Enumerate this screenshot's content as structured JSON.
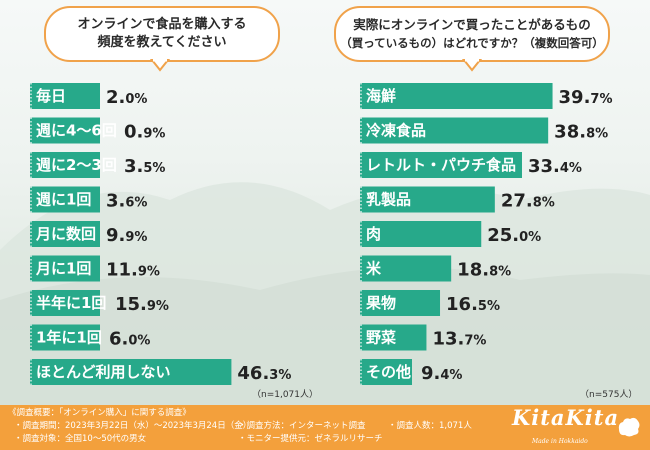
{
  "colors": {
    "bar": "#27a98a",
    "accent": "#f0a24a",
    "footer": "#f3a03c"
  },
  "left_question": [
    "オンラインで食品を購入する",
    "頻度を教えてください"
  ],
  "right_question": [
    "実際にオンラインで買ったことがあるもの",
    "（買っているもの）はどれですか？（複数回答可）"
  ],
  "left_note": "（n=1,071人）",
  "right_note": "（n=575人）",
  "chart_data": [
    {
      "type": "bar",
      "orientation": "horizontal",
      "unit": "%",
      "categories": [
        "毎日",
        "週に4〜6回",
        "週に2〜3回",
        "週に1回",
        "月に数回",
        "月に1回",
        "半年に1回",
        "1年に1回",
        "ほとんど利用しない"
      ],
      "values": [
        2.0,
        0.9,
        3.5,
        3.6,
        9.9,
        11.9,
        15.9,
        6.0,
        46.3
      ],
      "value_text": [
        "2.0",
        "0.9",
        "3.5",
        "3.6",
        "9.9",
        "11.9",
        "15.9",
        "6.0",
        "46.3"
      ]
    },
    {
      "type": "bar",
      "orientation": "horizontal",
      "unit": "%",
      "categories": [
        "海鮮",
        "冷凍食品",
        "レトルト・パウチ食品",
        "乳製品",
        "肉",
        "米",
        "果物",
        "野菜",
        "その他"
      ],
      "values": [
        39.7,
        38.8,
        33.4,
        27.8,
        25.0,
        18.8,
        16.5,
        13.7,
        9.4
      ],
      "value_text": [
        "39.7",
        "38.8",
        "33.4",
        "27.8",
        "25.0",
        "18.8",
        "16.5",
        "13.7",
        "9.4"
      ]
    }
  ],
  "footer": {
    "overview": "《調査概要：「オンライン購入」に関する調査》",
    "period": "・調査期間：2023年3月22日（水）〜2023年3月24日（金）",
    "method": "・調査方法：インターネット調査",
    "count": "・調査人数：1,071人",
    "target": "・調査対象：全国10〜50代の男女",
    "provider": "・モニター提供元：ゼネラルリサーチ"
  },
  "logo": {
    "text": "KitaKita",
    "sub": "Made in Hokkaido"
  }
}
